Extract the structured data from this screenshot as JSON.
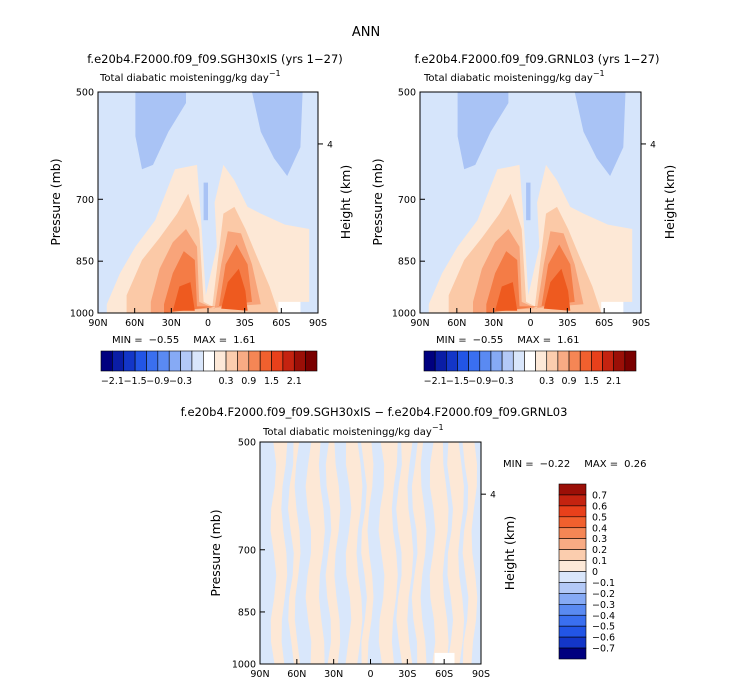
{
  "figure": {
    "title": "ANN",
    "diff_title": "f.e20b4.F2000.f09_f09.SGH30xIS − f.e20b4.F2000.f09_f09.GRNL03"
  },
  "panel_text": {
    "top_subtitle": "Total diabatic moistening",
    "top_units": "g/kg day",
    "units_exponent": "−1",
    "ylabel": "Pressure (mb)",
    "ylabel_right": "Height (km)",
    "right_tick": "4"
  },
  "chart_data": [
    {
      "type": "heatmap",
      "title": "f.e20b4.F2000.f09_f09.SGH30xIS (yrs 1−27)",
      "subtitle": "Total diabatic moistening g/kg day−1",
      "x_ticks": [
        "90N",
        "60N",
        "30N",
        "0",
        "30S",
        "60S",
        "90S"
      ],
      "y_ticks": [
        "500",
        "700",
        "850",
        "1000"
      ],
      "y_tick_values": [
        500,
        700,
        850,
        1000
      ],
      "ylabel": "Pressure (mb)",
      "ylabel_right": "Height (km)",
      "right_ticks": [
        "4"
      ],
      "min_label": "MIN =",
      "min": "−0.55",
      "max_label": "MAX =",
      "max": "1.61"
    },
    {
      "type": "heatmap",
      "title": "f.e20b4.F2000.f09_f09.GRNL03 (yrs 1−27)",
      "subtitle": "Total diabatic moistening g/kg day−1",
      "x_ticks": [
        "90N",
        "60N",
        "30N",
        "0",
        "30S",
        "60S",
        "90S"
      ],
      "y_ticks": [
        "500",
        "700",
        "850",
        "1000"
      ],
      "y_tick_values": [
        500,
        700,
        850,
        1000
      ],
      "ylabel": "Pressure (mb)",
      "ylabel_right": "Height (km)",
      "right_ticks": [
        "4"
      ],
      "min_label": "MIN =",
      "min": "−0.55",
      "max_label": "MAX =",
      "max": "1.61"
    },
    {
      "type": "heatmap",
      "title": "f.e20b4.F2000.f09_f09.SGH30xIS − f.e20b4.F2000.f09_f09.GRNL03",
      "subtitle": "Total diabatic moistening g/kg day−1",
      "x_ticks": [
        "90N",
        "60N",
        "30N",
        "0",
        "30S",
        "60S",
        "90S"
      ],
      "y_ticks": [
        "500",
        "700",
        "850",
        "1000"
      ],
      "y_tick_values": [
        500,
        700,
        850,
        1000
      ],
      "ylabel": "Pressure (mb)",
      "ylabel_right": "Height (km)",
      "right_ticks": [
        "4"
      ],
      "min_label": "MIN =",
      "min": "−0.22",
      "max_label": "MAX =",
      "max": "0.26"
    }
  ],
  "colorbar_top": {
    "labels": [
      "−2.1",
      "−1.5",
      "−0.9",
      "−0.3",
      "0.3",
      "0.9",
      "1.5",
      "2.1"
    ],
    "colors": [
      "#00007f",
      "#0a1da6",
      "#1336c8",
      "#2255e6",
      "#3a6ff0",
      "#5a8af2",
      "#86aaf5",
      "#b3c9f7",
      "#d9e6fb",
      "#ffffff",
      "#fde9d8",
      "#fbcdae",
      "#f8ab84",
      "#f58655",
      "#f1602e",
      "#e8401b",
      "#c42310",
      "#9b0f07",
      "#7a0000"
    ]
  },
  "colorbar_diff": {
    "labels": [
      "0.7",
      "0.6",
      "0.5",
      "0.4",
      "0.3",
      "0.2",
      "0.1",
      "0",
      "−0.1",
      "−0.2",
      "−0.3",
      "−0.4",
      "−0.5",
      "−0.6",
      "−0.7"
    ],
    "colors": [
      "#9b0f07",
      "#c42310",
      "#e8401b",
      "#f1602e",
      "#f58655",
      "#f8ab84",
      "#fbcdae",
      "#fde9d8",
      "#d9e6fb",
      "#b3c9f7",
      "#86aaf5",
      "#5a8af2",
      "#3a6ff0",
      "#2255e6",
      "#1336c8",
      "#00007f"
    ]
  },
  "palette": {
    "neg_light": "#d6e5fb",
    "neg_mid": "#a9c3f5",
    "pos_1": "#fde8d6",
    "pos_2": "#fbc9a7",
    "pos_3": "#f8a47a",
    "pos_4": "#f47c46",
    "pos_5": "#ee5a1f",
    "diff_pos": "#fde8d6",
    "diff_neg": "#d9e7fb"
  }
}
